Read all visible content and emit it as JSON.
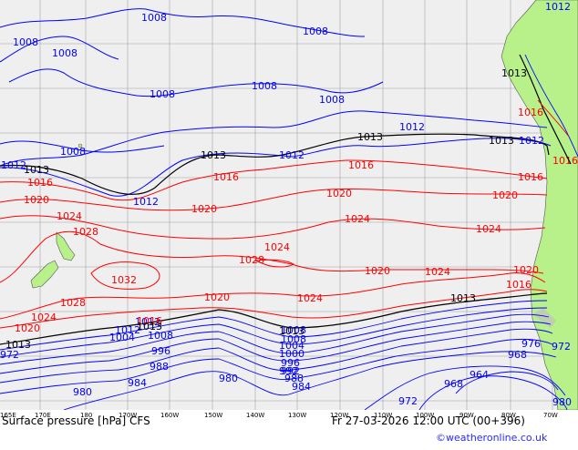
{
  "map": {
    "footer_left": "Surface pressure [hPa] CFS",
    "footer_right": "Fr 27-03-2026 12:00 UTC (00+396)",
    "credit": "©weatheronline.co.uk",
    "colors": {
      "ocean": "#efefef",
      "land": "#b8f08a",
      "grid": "#999999",
      "low_isobar": "#0000ff",
      "high_isobar": "#ff0000",
      "std_isobar": "#000000"
    },
    "x_ticks": [
      "165E",
      "170E",
      "180",
      "170W",
      "160W",
      "150W",
      "140W",
      "130W",
      "120W",
      "110W",
      "100W",
      "90W",
      "80W",
      "70W"
    ],
    "isobar_labels_blue": [
      "1012",
      "1008",
      "1008",
      "1008",
      "1008",
      "1008",
      "1008",
      "1008",
      "1008",
      "1012",
      "1012",
      "1012",
      "1012",
      "1012",
      "1012",
      "1008",
      "1008",
      "1004",
      "1000",
      "996",
      "992",
      "988",
      "984",
      "980",
      "976",
      "972",
      "968",
      "964",
      "968",
      "972",
      "1004",
      "1008",
      "996",
      "992",
      "988",
      "984",
      "980",
      "980",
      "972",
      "1012"
    ],
    "isobar_labels_red": [
      "1016",
      "1016",
      "1016",
      "1016",
      "1016",
      "1020",
      "1020",
      "1020",
      "1020",
      "1020",
      "1020",
      "1020",
      "1024",
      "1024",
      "1024",
      "1024",
      "1024",
      "1024",
      "1024",
      "1028",
      "1028",
      "1028",
      "1032",
      "1016",
      "1016",
      "1020"
    ],
    "isobar_labels_black": [
      "1013",
      "1013",
      "1013",
      "1013",
      "1013",
      "1013",
      "1013",
      "1013",
      "1013"
    ]
  }
}
